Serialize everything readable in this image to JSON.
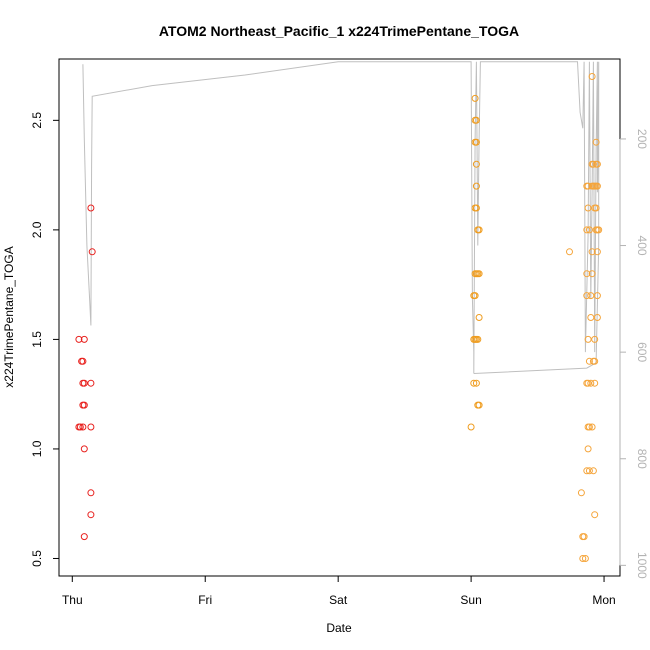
{
  "chart_data": {
    "type": "scatter",
    "title": "ATOM2 Northeast_Pacific_1 x224TrimePentane_TOGA",
    "xlabel": "Date",
    "ylabel": "x224TrimePentane_TOGA",
    "x_ticks": [
      "Thu",
      "Fri",
      "Sat",
      "Sun",
      "Mon"
    ],
    "x_range_days": [
      -0.1,
      4.12
    ],
    "ylim": [
      0.42,
      2.78
    ],
    "y_ticks": [
      0.5,
      1.0,
      1.5,
      2.0,
      2.5
    ],
    "y_tick_labels": [
      "0.5",
      "1.0",
      "1.5",
      "2.0",
      "2.5"
    ],
    "y2_axis": {
      "ticks": [
        200,
        400,
        600,
        800,
        1000
      ],
      "tick_labels": [
        "200",
        "400",
        "600",
        "800",
        "1000"
      ],
      "lim": [
        1020,
        50
      ],
      "color": "#b3b3b3"
    },
    "colors": {
      "thu": "#e8211e",
      "sun": "#ef9c1e",
      "mon": "#f5a53b",
      "pressure_line": "#bfbfbf"
    },
    "series": [
      {
        "color": "#e8211e",
        "points": [
          [
            0.05,
            1.5
          ],
          [
            0.07,
            1.4
          ],
          [
            0.08,
            1.4
          ],
          [
            0.05,
            1.1
          ],
          [
            0.06,
            1.1
          ],
          [
            0.08,
            1.1
          ],
          [
            0.08,
            1.3
          ],
          [
            0.09,
            1.3
          ],
          [
            0.08,
            1.2
          ],
          [
            0.09,
            1.2
          ],
          [
            0.09,
            1.5
          ],
          [
            0.09,
            1.0
          ],
          [
            0.09,
            0.6
          ],
          [
            0.14,
            2.1
          ],
          [
            0.15,
            1.9
          ],
          [
            0.14,
            1.3
          ],
          [
            0.14,
            1.1
          ],
          [
            0.14,
            0.8
          ],
          [
            0.14,
            0.7
          ]
        ]
      },
      {
        "color": "#ef9c1e",
        "points": [
          [
            3.0,
            1.1
          ],
          [
            3.02,
            1.3
          ],
          [
            3.04,
            1.3
          ],
          [
            3.03,
            2.6
          ],
          [
            3.03,
            2.5
          ],
          [
            3.04,
            2.5
          ],
          [
            3.03,
            2.4
          ],
          [
            3.04,
            2.4
          ],
          [
            3.04,
            2.3
          ],
          [
            3.04,
            2.2
          ],
          [
            3.03,
            2.1
          ],
          [
            3.04,
            2.1
          ],
          [
            3.05,
            2.0
          ],
          [
            3.06,
            2.0
          ],
          [
            3.03,
            1.8
          ],
          [
            3.04,
            1.8
          ],
          [
            3.05,
            1.8
          ],
          [
            3.06,
            1.8
          ],
          [
            3.02,
            1.7
          ],
          [
            3.03,
            1.7
          ],
          [
            3.06,
            1.6
          ],
          [
            3.02,
            1.5
          ],
          [
            3.03,
            1.5
          ],
          [
            3.04,
            1.5
          ],
          [
            3.05,
            1.5
          ],
          [
            3.05,
            1.2
          ],
          [
            3.06,
            1.2
          ]
        ]
      },
      {
        "color": "#f5a53b",
        "points": [
          [
            3.74,
            1.9
          ],
          [
            3.83,
            0.8
          ],
          [
            3.84,
            0.6
          ],
          [
            3.85,
            0.6
          ],
          [
            3.84,
            0.5
          ],
          [
            3.86,
            0.5
          ],
          [
            3.87,
            2.2
          ],
          [
            3.88,
            2.2
          ],
          [
            3.88,
            2.1
          ],
          [
            3.87,
            2.0
          ],
          [
            3.87,
            1.8
          ],
          [
            3.87,
            1.7
          ],
          [
            3.88,
            1.5
          ],
          [
            3.87,
            1.3
          ],
          [
            3.88,
            1.3
          ],
          [
            3.87,
            0.9
          ],
          [
            3.88,
            1.1
          ],
          [
            3.89,
            1.1
          ],
          [
            3.88,
            1.0
          ],
          [
            3.89,
            0.9
          ],
          [
            3.89,
            1.4
          ],
          [
            3.9,
            1.7
          ],
          [
            3.91,
            2.7
          ],
          [
            3.91,
            2.3
          ],
          [
            3.92,
            2.3
          ],
          [
            3.91,
            2.2
          ],
          [
            3.92,
            2.2
          ],
          [
            3.91,
            1.8
          ],
          [
            3.91,
            1.9
          ],
          [
            3.92,
            1.4
          ],
          [
            3.91,
            1.1
          ],
          [
            3.92,
            0.9
          ],
          [
            3.93,
            2.2
          ],
          [
            3.93,
            2.1
          ],
          [
            3.94,
            2.1
          ],
          [
            3.93,
            1.4
          ],
          [
            3.93,
            1.3
          ],
          [
            3.93,
            0.7
          ],
          [
            3.94,
            2.4
          ],
          [
            3.94,
            2.3
          ],
          [
            3.95,
            2.3
          ],
          [
            3.94,
            2.2
          ],
          [
            3.95,
            2.2
          ],
          [
            3.94,
            2.0
          ],
          [
            3.95,
            2.0
          ],
          [
            3.96,
            2.0
          ],
          [
            3.95,
            1.9
          ],
          [
            3.95,
            1.7
          ],
          [
            3.95,
            1.6
          ],
          [
            3.93,
            1.5
          ],
          [
            3.89,
            2.0
          ],
          [
            3.9,
            1.6
          ],
          [
            3.9,
            1.3
          ]
        ]
      }
    ],
    "pressure_line": {
      "color": "#bfbfbf",
      "points": [
        [
          0.08,
          60
        ],
        [
          0.09,
          200
        ],
        [
          0.1,
          300
        ],
        [
          0.11,
          400
        ],
        [
          0.13,
          500
        ],
        [
          0.14,
          550
        ],
        [
          0.145,
          250
        ],
        [
          0.15,
          120
        ],
        [
          0.6,
          100
        ],
        [
          1.3,
          80
        ],
        [
          2.0,
          55
        ],
        [
          3.0,
          55
        ],
        [
          3.01,
          500
        ],
        [
          3.02,
          600
        ],
        [
          3.02,
          640
        ],
        [
          3.03,
          200
        ],
        [
          3.04,
          55
        ],
        [
          3.05,
          400
        ],
        [
          3.06,
          200
        ],
        [
          3.07,
          55
        ],
        [
          3.6,
          55
        ],
        [
          3.8,
          55
        ],
        [
          3.82,
          150
        ],
        [
          3.84,
          180
        ],
        [
          3.85,
          55
        ],
        [
          3.86,
          600
        ],
        [
          3.88,
          380
        ],
        [
          3.89,
          55
        ],
        [
          3.9,
          500
        ],
        [
          3.91,
          300
        ],
        [
          3.92,
          55
        ],
        [
          3.93,
          600
        ],
        [
          3.94,
          220
        ],
        [
          3.95,
          55
        ],
        [
          3.95,
          300
        ],
        [
          3.96,
          55
        ],
        [
          3.96,
          400
        ],
        [
          3.94,
          620
        ],
        [
          3.87,
          630
        ],
        [
          3.02,
          640
        ]
      ]
    }
  }
}
